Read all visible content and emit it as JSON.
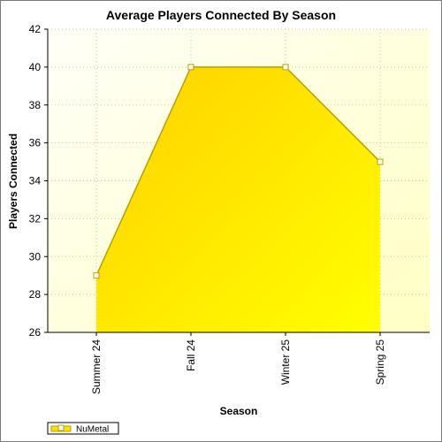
{
  "chart_data": {
    "type": "area",
    "title": "Average Players Connected By Season",
    "xlabel": "Season",
    "ylabel": "Players Connected",
    "categories": [
      "Summer 24",
      "Fall 24",
      "Winter 25",
      "Spring 25"
    ],
    "series": [
      {
        "name": "NuMetal",
        "values": [
          29,
          40,
          40,
          35
        ]
      }
    ],
    "ylim": [
      26,
      42
    ],
    "yticks": [
      26,
      28,
      30,
      32,
      34,
      36,
      38,
      40,
      42
    ],
    "grid": true,
    "legend_position": "bottom-left",
    "colors": {
      "plot_bg_top": "#fffff8",
      "plot_bg_bottom": "#ffffc8",
      "area_fill_start": "#ffd400",
      "area_fill_end": "#ffff00",
      "area_line": "#b8a000",
      "grid": "#c8c8a0",
      "axis": "#000000"
    }
  }
}
